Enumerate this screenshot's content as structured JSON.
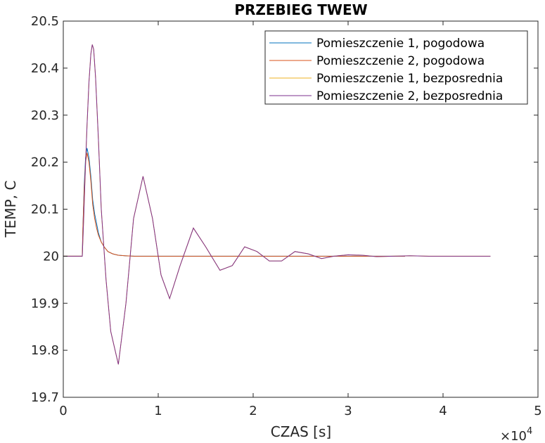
{
  "chart_data": {
    "type": "line",
    "title": "PRZEBIEG TWEW",
    "xlabel": "CZAS [s]",
    "ylabel": "TEMP, C",
    "x_exponent_label": "×10",
    "x_exponent_power": "4",
    "xlim": [
      0,
      50000
    ],
    "ylim": [
      19.7,
      20.5
    ],
    "xticks": [
      0,
      10000,
      20000,
      30000,
      40000,
      50000
    ],
    "xtick_labels": [
      "0",
      "1",
      "2",
      "3",
      "4",
      "5"
    ],
    "yticks": [
      19.7,
      19.8,
      19.9,
      20.0,
      20.1,
      20.2,
      20.3,
      20.4,
      20.5
    ],
    "ytick_labels": [
      "19.7",
      "19.8",
      "19.9",
      "20",
      "20.1",
      "20.2",
      "20.3",
      "20.4",
      "20.5"
    ],
    "grid": false,
    "legend_position": "top-right",
    "series": [
      {
        "name": "Pomieszczenie 1, pogodowa",
        "color": "#0072BD",
        "x": [
          0,
          2000,
          2050,
          2200,
          2350,
          2500,
          2700,
          2900,
          3100,
          3300,
          3500,
          3700,
          4000,
          4300,
          4700,
          5200,
          5800,
          6500,
          7500,
          9000,
          12000,
          20000,
          36000
        ],
        "y": [
          20.0,
          20.0,
          20.05,
          20.15,
          20.21,
          20.23,
          20.21,
          20.17,
          20.12,
          20.09,
          20.07,
          20.05,
          20.03,
          20.02,
          20.01,
          20.005,
          20.002,
          20.001,
          20.0,
          20.0,
          20.0,
          20.0,
          20.0
        ]
      },
      {
        "name": "Pomieszczenie 2, pogodowa",
        "color": "#D95319",
        "x": [
          0,
          2000,
          2050,
          2200,
          2350,
          2500,
          2700,
          2900,
          3100,
          3300,
          3500,
          3700,
          4000,
          4300,
          4700,
          5200,
          5800,
          6500,
          7500,
          9000,
          12000,
          20000,
          36000
        ],
        "y": [
          20.0,
          20.0,
          20.05,
          20.14,
          20.2,
          20.22,
          20.2,
          20.16,
          20.11,
          20.08,
          20.06,
          20.045,
          20.03,
          20.02,
          20.01,
          20.005,
          20.002,
          20.001,
          20.0,
          20.0,
          20.0,
          20.0,
          20.0
        ]
      },
      {
        "name": "Pomieszczenie 1, bezposrednia",
        "color": "#EDB120",
        "x": [
          0,
          2000,
          2150,
          2300,
          2500,
          2700,
          2900,
          3050,
          3200,
          3400,
          3700,
          4000,
          4500,
          5000,
          5800,
          6600,
          7400,
          8400,
          9400,
          10300,
          11200,
          12300,
          13700,
          15000,
          16500,
          17800,
          19100,
          20400,
          21700,
          23000,
          24400,
          25800,
          27200,
          28500,
          30000,
          31500,
          33000,
          34800,
          36500,
          38500,
          40500,
          42500,
          45000
        ],
        "y": [
          20.0,
          20.0,
          20.08,
          20.17,
          20.28,
          20.37,
          20.43,
          20.45,
          20.44,
          20.38,
          20.25,
          20.1,
          19.95,
          19.84,
          19.77,
          19.9,
          20.08,
          20.17,
          20.08,
          19.96,
          19.91,
          19.98,
          20.06,
          20.02,
          19.97,
          19.98,
          20.02,
          20.01,
          19.99,
          19.99,
          20.01,
          20.005,
          19.995,
          20.0,
          20.003,
          20.002,
          19.999,
          20.0,
          20.001,
          20.0,
          20.0,
          20.0,
          20.0
        ]
      },
      {
        "name": "Pomieszczenie 2, bezposrednia",
        "color": "#7E2F8E",
        "x": [
          0,
          2000,
          2150,
          2300,
          2500,
          2700,
          2900,
          3050,
          3200,
          3400,
          3700,
          4000,
          4500,
          5000,
          5800,
          6600,
          7400,
          8400,
          9400,
          10300,
          11200,
          12300,
          13700,
          15000,
          16500,
          17800,
          19100,
          20400,
          21700,
          23000,
          24400,
          25800,
          27200,
          28500,
          30000,
          31500,
          33000,
          34800,
          36500,
          38500,
          40500,
          42500,
          45000
        ],
        "y": [
          20.0,
          20.0,
          20.08,
          20.17,
          20.28,
          20.37,
          20.43,
          20.45,
          20.44,
          20.38,
          20.25,
          20.1,
          19.95,
          19.84,
          19.77,
          19.9,
          20.08,
          20.17,
          20.08,
          19.96,
          19.91,
          19.98,
          20.06,
          20.02,
          19.97,
          19.98,
          20.02,
          20.01,
          19.99,
          19.99,
          20.01,
          20.005,
          19.995,
          20.0,
          20.003,
          20.002,
          19.999,
          20.0,
          20.001,
          20.0,
          20.0,
          20.0,
          20.0
        ]
      }
    ]
  }
}
